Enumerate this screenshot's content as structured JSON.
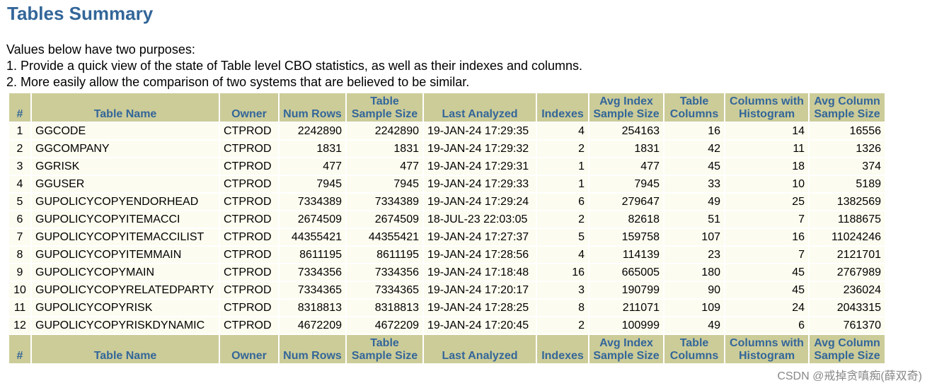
{
  "header": {
    "title": "Tables Summary"
  },
  "intro": [
    "Values below have two purposes:",
    "1. Provide a quick view of the state of Table level CBO statistics, as well as their indexes and columns.",
    "2. More easily allow the comparison of two systems that are believed to be similar."
  ],
  "table": {
    "columns": [
      "#",
      "Table Name",
      "Owner",
      "Num Rows",
      "Table\nSample Size",
      "Last Analyzed",
      "Indexes",
      "Avg Index\nSample Size",
      "Table\nColumns",
      "Columns with\nHistogram",
      "Avg Column\nSample Size"
    ],
    "rows": [
      [
        1,
        "GGCODE",
        "CTPROD",
        2242890,
        2242890,
        "19-JAN-24 17:29:35",
        4,
        254163,
        16,
        14,
        16556
      ],
      [
        2,
        "GGCOMPANY",
        "CTPROD",
        1831,
        1831,
        "19-JAN-24 17:29:32",
        2,
        1831,
        42,
        11,
        1326
      ],
      [
        3,
        "GGRISK",
        "CTPROD",
        477,
        477,
        "19-JAN-24 17:29:31",
        1,
        477,
        45,
        18,
        374
      ],
      [
        4,
        "GGUSER",
        "CTPROD",
        7945,
        7945,
        "19-JAN-24 17:29:33",
        1,
        7945,
        33,
        10,
        5189
      ],
      [
        5,
        "GUPOLICYCOPYENDORHEAD",
        "CTPROD",
        7334389,
        7334389,
        "19-JAN-24 17:29:24",
        6,
        279647,
        49,
        25,
        1382569
      ],
      [
        6,
        "GUPOLICYCOPYITEMACCI",
        "CTPROD",
        2674509,
        2674509,
        "18-JUL-23 22:03:05",
        2,
        82618,
        51,
        7,
        1188675
      ],
      [
        7,
        "GUPOLICYCOPYITEMACCILIST",
        "CTPROD",
        44355421,
        44355421,
        "19-JAN-24 17:27:37",
        5,
        159758,
        107,
        16,
        11024246
      ],
      [
        8,
        "GUPOLICYCOPYITEMMAIN",
        "CTPROD",
        8611195,
        8611195,
        "19-JAN-24 17:28:56",
        4,
        114139,
        23,
        7,
        2121701
      ],
      [
        9,
        "GUPOLICYCOPYMAIN",
        "CTPROD",
        7334356,
        7334356,
        "19-JAN-24 17:18:48",
        16,
        665005,
        180,
        45,
        2767989
      ],
      [
        10,
        "GUPOLICYCOPYRELATEDPARTY",
        "CTPROD",
        7334365,
        7334365,
        "19-JAN-24 17:20:17",
        3,
        190799,
        90,
        45,
        236024
      ],
      [
        11,
        "GUPOLICYCOPYRISK",
        "CTPROD",
        8318813,
        8318813,
        "19-JAN-24 17:28:25",
        8,
        211071,
        109,
        24,
        2043315
      ],
      [
        12,
        "GUPOLICYCOPYRISKDYNAMIC",
        "CTPROD",
        4672209,
        4672209,
        "19-JAN-24 17:20:45",
        2,
        100999,
        49,
        6,
        761370
      ]
    ]
  },
  "watermark": "CSDN @戒掉贪嗔痴(薛双奇)"
}
